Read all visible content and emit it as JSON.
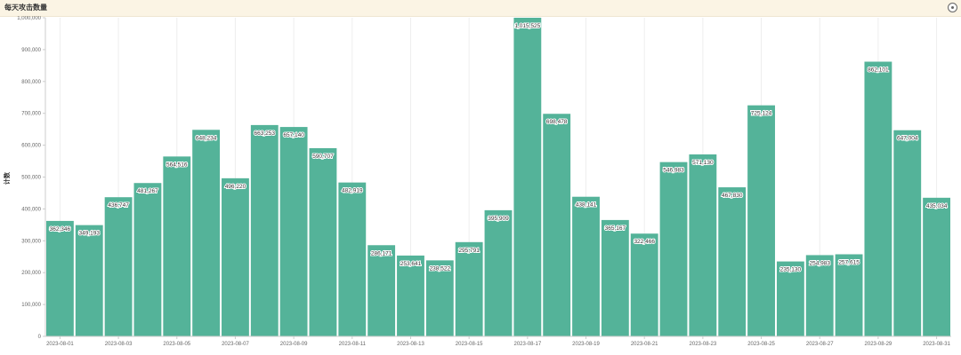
{
  "panel": {
    "title": "每天攻击数量"
  },
  "chart_data": {
    "type": "bar",
    "ylabel": "计数",
    "xlabel": "",
    "ylim": [
      0,
      1000000
    ],
    "yticks": [
      "0",
      "100,000",
      "200,000",
      "300,000",
      "400,000",
      "500,000",
      "600,000",
      "700,000",
      "800,000",
      "900,000",
      "1,000,000"
    ],
    "categories": [
      "2023-08-01",
      "2023-08-02",
      "2023-08-03",
      "2023-08-04",
      "2023-08-05",
      "2023-08-06",
      "2023-08-07",
      "2023-08-08",
      "2023-08-09",
      "2023-08-10",
      "2023-08-11",
      "2023-08-12",
      "2023-08-13",
      "2023-08-14",
      "2023-08-15",
      "2023-08-16",
      "2023-08-17",
      "2023-08-18",
      "2023-08-19",
      "2023-08-20",
      "2023-08-21",
      "2023-08-22",
      "2023-08-23",
      "2023-08-24",
      "2023-08-25",
      "2023-08-26",
      "2023-08-27",
      "2023-08-28",
      "2023-08-29",
      "2023-08-30",
      "2023-08-31"
    ],
    "xtick_labels": [
      "2023-08-01",
      "2023-08-03",
      "2023-08-05",
      "2023-08-07",
      "2023-08-09",
      "2023-08-11",
      "2023-08-13",
      "2023-08-15",
      "2023-08-17",
      "2023-08-19",
      "2023-08-21",
      "2023-08-23",
      "2023-08-25",
      "2023-08-27",
      "2023-08-29",
      "2023-08-31"
    ],
    "values": [
      362346,
      349193,
      436747,
      481267,
      564516,
      648234,
      496220,
      663253,
      657140,
      590707,
      482919,
      286171,
      253641,
      238522,
      295791,
      395909,
      1015525,
      698478,
      438141,
      365167,
      322466,
      546983,
      571130,
      467830,
      725124,
      235130,
      254983,
      257615,
      862101,
      647004,
      435034
    ],
    "data_labels": [
      "362,346",
      "349,193",
      "436,747",
      "481,267",
      "564,516",
      "648,234",
      "496,220",
      "663,253",
      "657,140",
      "590,707",
      "482,919",
      "286,171",
      "253,641",
      "238,522",
      "295,791",
      "395,909",
      "1,015,525",
      "698,478",
      "438,141",
      "365,167",
      "322,466",
      "546,983",
      "571,130",
      "467,830",
      "725,124",
      "235,130",
      "254,983",
      "257,615",
      "862,101",
      "647,004",
      "435,034"
    ],
    "bar_color": "#54b399",
    "grid": true
  }
}
